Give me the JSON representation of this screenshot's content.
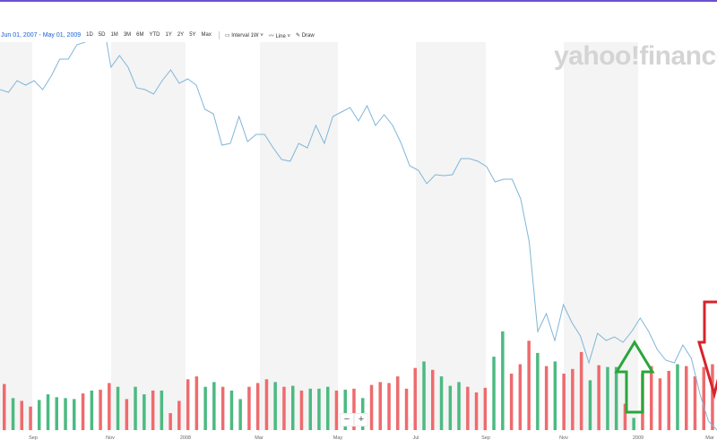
{
  "toolbar": {
    "date_range": "Jun 01, 2007 - May 01, 2009",
    "ranges": [
      "1D",
      "5D",
      "1M",
      "3M",
      "6M",
      "YTD",
      "1Y",
      "2Y",
      "5Y",
      "Max"
    ],
    "interval_label": "Interval",
    "interval_value": "1W",
    "chart_type": "Line",
    "draw_label": "Draw"
  },
  "watermark": "yahoo!finance",
  "zoom_controls": {
    "minus": "−",
    "plus": "+"
  },
  "colors": {
    "line": "#7fb6d9",
    "up": "#4cba82",
    "down": "#ee6b6e",
    "band": "#f4f4f4",
    "arrow_up": "#2aa63a",
    "arrow_down": "#d8232a"
  },
  "chart_data": {
    "type": "line",
    "x_tick_labels": [
      "Sep",
      "Nov",
      "2008",
      "Mar",
      "May",
      "Jul",
      "Sep",
      "Nov",
      "2009",
      "Mar"
    ],
    "price_relative": [
      400,
      397,
      410,
      405,
      410,
      400,
      415,
      434,
      434,
      450,
      453,
      478,
      480,
      425,
      438,
      425,
      402,
      400,
      395,
      410,
      422,
      407,
      412,
      405,
      378,
      373,
      338,
      340,
      370,
      342,
      350,
      350,
      335,
      322,
      320,
      340,
      335,
      360,
      340,
      370,
      375,
      380,
      365,
      382,
      360,
      372,
      360,
      340,
      315,
      310,
      295,
      305,
      304,
      305,
      323,
      323,
      320,
      314,
      297,
      300,
      300,
      278,
      230,
      130,
      150,
      120,
      160,
      140,
      125,
      95,
      128,
      120,
      124,
      118,
      130,
      145,
      130,
      110,
      98,
      95,
      115,
      100,
      60,
      30,
      20
    ],
    "volume_relative": [
      49,
      34,
      31,
      25,
      32,
      38,
      35,
      34,
      33,
      39,
      42,
      43,
      50,
      46,
      33,
      46,
      38,
      42,
      42,
      18,
      31,
      54,
      57,
      46,
      51,
      46,
      42,
      33,
      46,
      50,
      54,
      51,
      46,
      47,
      42,
      44,
      44,
      46,
      42,
      43,
      44,
      34,
      48,
      51,
      50,
      57,
      44,
      66,
      73,
      64,
      57,
      47,
      51,
      46,
      40,
      45,
      78,
      105,
      60,
      70,
      95,
      82,
      68,
      73,
      60,
      65,
      83,
      53,
      69,
      67,
      67,
      28,
      13,
      60,
      68,
      55,
      63,
      70,
      68,
      57,
      67,
      70
    ],
    "volume_direction": [
      "d",
      "u",
      "d",
      "d",
      "u",
      "u",
      "u",
      "u",
      "u",
      "d",
      "u",
      "d",
      "d",
      "u",
      "d",
      "u",
      "u",
      "d",
      "u",
      "d",
      "d",
      "d",
      "d",
      "u",
      "u",
      "d",
      "u",
      "u",
      "d",
      "d",
      "d",
      "u",
      "d",
      "u",
      "d",
      "u",
      "u",
      "u",
      "d",
      "u",
      "d",
      "u",
      "d",
      "d",
      "d",
      "d",
      "d",
      "d",
      "u",
      "d",
      "u",
      "u",
      "u",
      "d",
      "d",
      "d",
      "u",
      "u",
      "d",
      "d",
      "d",
      "u",
      "d",
      "u",
      "d",
      "d",
      "d",
      "u",
      "d",
      "u",
      "u",
      "d",
      "u",
      "d",
      "d",
      "d",
      "d",
      "u",
      "d",
      "d",
      "d",
      "d"
    ]
  }
}
